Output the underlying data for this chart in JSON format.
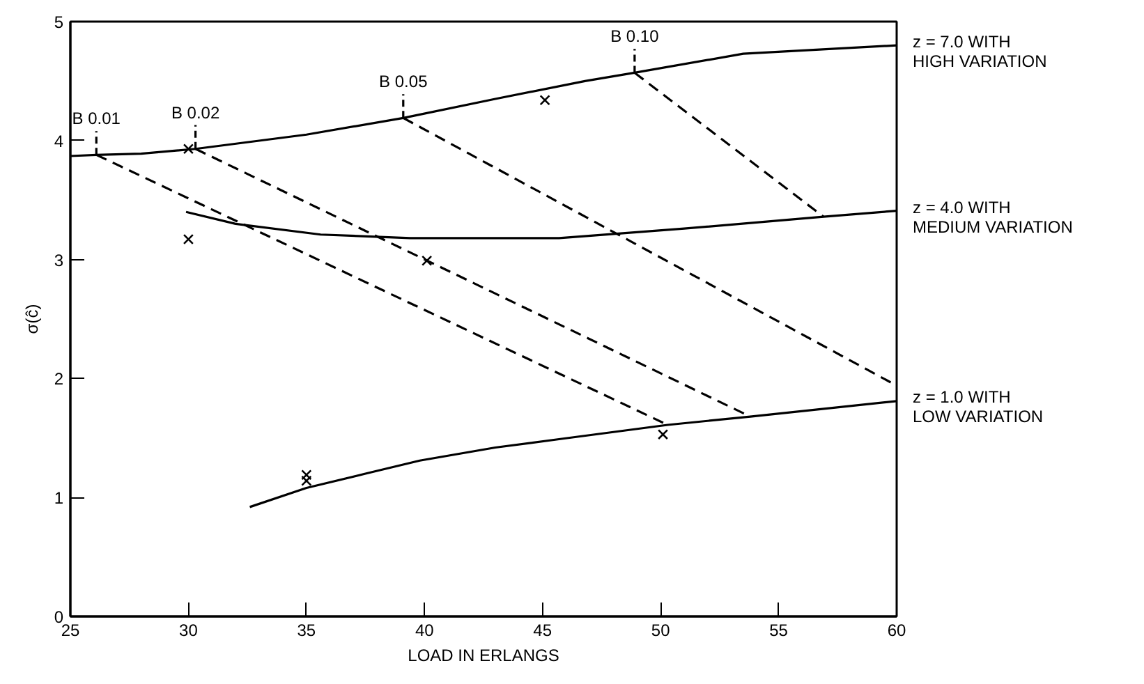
{
  "chart_data": {
    "type": "line",
    "xlabel": "LOAD IN ERLANGS",
    "ylabel": "σ(ĉ)",
    "xlim": [
      25,
      60
    ],
    "ylim": [
      0,
      5
    ],
    "xticks": [
      25,
      30,
      35,
      40,
      45,
      50,
      55,
      60
    ],
    "yticks": [
      0,
      1,
      2,
      3,
      4,
      5
    ],
    "grid": false,
    "line_style": "solid",
    "series": [
      {
        "name": "z = 7.0 WITH\nHIGH VARIATION",
        "color": "#000000",
        "x": [
          25,
          26.1,
          28,
          30.3,
          35,
          39.1,
          43,
          46.8,
          48.9,
          53.5,
          60
        ],
        "values": [
          3.87,
          3.88,
          3.89,
          3.93,
          4.05,
          4.19,
          4.35,
          4.5,
          4.57,
          4.73,
          4.8
        ]
      },
      {
        "name": "z = 4.0 WITH\nMEDIUM VARIATION",
        "color": "#000000",
        "x": [
          29.9,
          32,
          35.6,
          39.4,
          45.7,
          51,
          56.9,
          60
        ],
        "values": [
          3.4,
          3.3,
          3.21,
          3.18,
          3.18,
          3.26,
          3.36,
          3.41
        ]
      },
      {
        "name": "z = 1.0 WITH\nLOW VARIATION",
        "color": "#000000",
        "x": [
          32.6,
          35,
          37.5,
          39.8,
          43,
          45.7,
          50.3,
          53.8,
          60
        ],
        "values": [
          0.92,
          1.08,
          1.2,
          1.31,
          1.42,
          1.49,
          1.61,
          1.68,
          1.81
        ]
      },
      {
        "color": "#000000",
        "line_style": "dashed",
        "x": [
          26.1,
          50.3
        ],
        "values": [
          3.88,
          1.61
        ]
      },
      {
        "color": "#000000",
        "line_style": "dashed",
        "x": [
          30.3,
          53.8
        ],
        "values": [
          3.93,
          1.68
        ]
      },
      {
        "color": "#000000",
        "line_style": "dashed",
        "x": [
          39.1,
          60
        ],
        "values": [
          4.19,
          1.94
        ]
      },
      {
        "color": "#000000",
        "line_style": "dashed",
        "x": [
          48.9,
          56.9
        ],
        "values": [
          4.57,
          3.36
        ]
      },
      {
        "type": "scatter",
        "marker": "cross",
        "color": "#000000",
        "x": [
          30,
          30,
          40.1,
          45.1,
          35,
          35,
          50.1
        ],
        "values": [
          3.93,
          3.17,
          2.99,
          4.34,
          1.19,
          1.14,
          1.53
        ]
      }
    ],
    "annotations": [
      {
        "text": "B 0.01",
        "x": 26.1,
        "y": 3.88
      },
      {
        "text": "B 0.02",
        "x": 30.3,
        "y": 3.93
      },
      {
        "text": "B 0.05",
        "x": 39.1,
        "y": 4.19
      },
      {
        "text": "B 0.10",
        "x": 48.9,
        "y": 4.57
      }
    ]
  }
}
